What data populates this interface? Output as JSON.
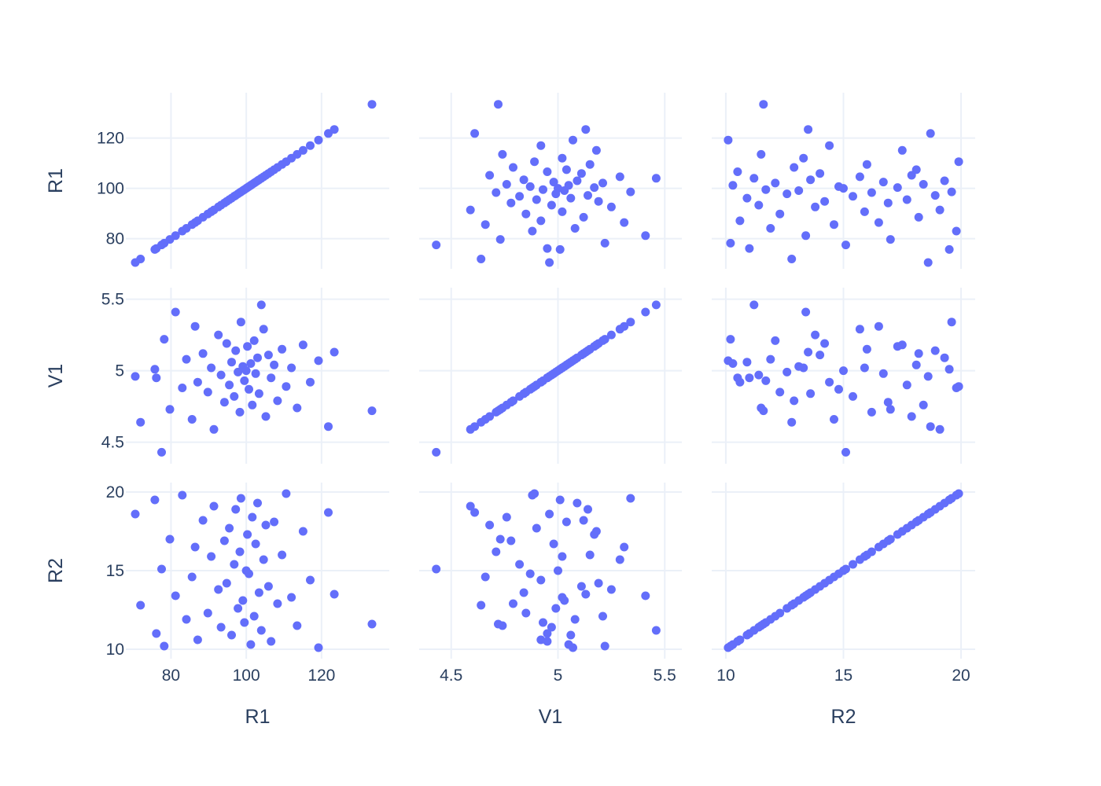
{
  "chart_data": {
    "type": "scatter",
    "kind": "scatter-matrix",
    "variables": [
      "R1",
      "V1",
      "R2"
    ],
    "marker_color": "#636efa",
    "grid_color": "#ebf0f8",
    "text_color": "#2a3f5f",
    "axes": {
      "R1": {
        "range": [
          68,
          138
        ],
        "ticks": [
          80,
          100,
          120
        ],
        "tick_labels": [
          "80",
          "100",
          "120"
        ]
      },
      "V1": {
        "range": [
          4.35,
          5.58
        ],
        "ticks": [
          4.5,
          5,
          5.5
        ],
        "tick_labels": [
          "4.5",
          "5",
          "5.5"
        ]
      },
      "R2": {
        "range": [
          9.4,
          20.6
        ],
        "ticks": [
          10,
          15,
          20
        ],
        "tick_labels": [
          "10",
          "15",
          "20"
        ]
      }
    },
    "points": {
      "R1": [
        70.5,
        71.9,
        75.7,
        76.1,
        77.5,
        78.2,
        79.7,
        81.2,
        83.0,
        84.1,
        85.6,
        86.4,
        87.1,
        88.5,
        89.8,
        90.7,
        91.4,
        92.6,
        93.3,
        94.2,
        94.8,
        95.5,
        96.1,
        96.8,
        97.2,
        97.8,
        98.3,
        98.6,
        99.1,
        99.5,
        100.0,
        100.3,
        100.7,
        101.2,
        101.6,
        102.1,
        102.5,
        103.0,
        103.4,
        104.0,
        104.6,
        105.2,
        105.9,
        106.6,
        107.4,
        108.3,
        109.5,
        110.6,
        112.0,
        113.5,
        115.1,
        117.0,
        119.2,
        121.8,
        123.4,
        133.4
      ],
      "V1": [
        4.96,
        4.64,
        5.01,
        4.95,
        4.43,
        5.22,
        4.73,
        5.41,
        4.88,
        5.08,
        4.66,
        5.31,
        4.92,
        5.12,
        4.85,
        5.02,
        4.59,
        5.25,
        4.97,
        4.78,
        5.19,
        4.9,
        5.06,
        4.82,
        5.14,
        4.99,
        4.71,
        5.34,
        5.03,
        4.93,
        5.0,
        5.17,
        4.87,
        5.05,
        4.76,
        5.21,
        4.98,
        5.09,
        4.84,
        5.46,
        5.29,
        4.68,
        5.11,
        4.95,
        5.04,
        4.79,
        5.15,
        4.89,
        5.02,
        4.74,
        5.18,
        4.92,
        5.07,
        4.61,
        5.13,
        4.72
      ],
      "R2": [
        18.6,
        12.8,
        19.5,
        11.0,
        15.1,
        10.2,
        17.0,
        13.4,
        19.8,
        11.9,
        14.6,
        16.5,
        10.6,
        18.2,
        12.3,
        15.9,
        19.1,
        13.8,
        11.4,
        16.9,
        14.2,
        17.7,
        10.9,
        15.4,
        18.9,
        12.6,
        16.2,
        19.6,
        13.1,
        11.7,
        15.0,
        17.3,
        14.8,
        10.3,
        18.4,
        12.1,
        16.7,
        19.3,
        13.6,
        11.2,
        15.7,
        17.9,
        14.0,
        10.5,
        18.1,
        12.9,
        16.0,
        19.9,
        13.3,
        11.5,
        17.5,
        14.4,
        10.1,
        18.7,
        13.5,
        11.6
      ]
    }
  }
}
